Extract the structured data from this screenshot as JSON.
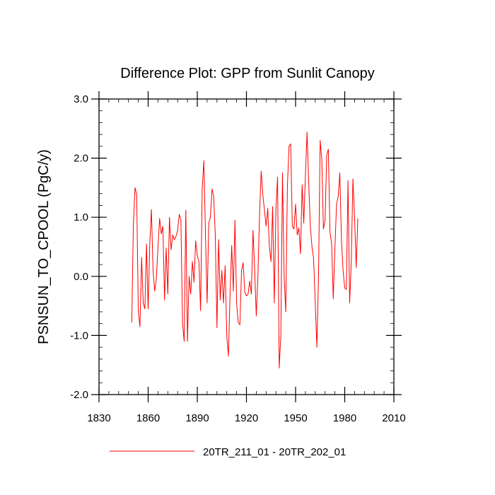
{
  "chart_data": {
    "type": "line",
    "title": "Difference Plot: GPP from Sunlit Canopy",
    "xlabel": "",
    "ylabel": "PSNSUN_TO_CPOOL  (PgC/y)",
    "xlim": [
      1830,
      2010
    ],
    "ylim": [
      -2.0,
      3.0
    ],
    "x_ticks": [
      1830,
      1860,
      1890,
      1920,
      1950,
      1980,
      2010
    ],
    "y_ticks": [
      -2.0,
      -1.0,
      0.0,
      1.0,
      2.0,
      3.0
    ],
    "x_tick_labels": [
      "1830",
      "1860",
      "1890",
      "1920",
      "1950",
      "1980",
      "2010"
    ],
    "y_tick_labels": [
      "-2.0",
      "-1.0",
      "0.0",
      "1.0",
      "2.0",
      "3.0"
    ],
    "legend_position": "bottom",
    "series": [
      {
        "name": "20TR_211_01 - 20TR_202_01",
        "color": "#ff0000",
        "x_start": 1850,
        "x_step": 1,
        "values": [
          -0.78,
          0.9,
          1.5,
          1.38,
          -0.6,
          -0.85,
          0.32,
          -0.45,
          -0.55,
          0.55,
          -0.55,
          0.55,
          1.13,
          0.1,
          -0.25,
          -0.05,
          0.5,
          0.98,
          0.72,
          0.85,
          -0.4,
          0.48,
          -0.3,
          1.0,
          0.45,
          0.7,
          0.62,
          0.68,
          0.78,
          1.05,
          0.95,
          -0.8,
          -1.1,
          1.12,
          -1.1,
          0.0,
          -0.3,
          0.25,
          -0.1,
          0.6,
          0.35,
          0.25,
          -0.58,
          1.48,
          1.96,
          0.7,
          -0.45,
          0.9,
          1.0,
          1.48,
          1.35,
          0.68,
          -0.87,
          0.62,
          -0.4,
          0.1,
          -0.45,
          0.18,
          -1.0,
          -1.35,
          -0.3,
          0.52,
          -0.25,
          0.95,
          -0.45,
          -0.78,
          -0.82,
          0.1,
          0.23,
          -0.27,
          -0.33,
          -0.3,
          -0.08,
          -0.3,
          0.78,
          0.12,
          -0.67,
          0.0,
          1.05,
          1.78,
          1.38,
          1.12,
          0.85,
          1.15,
          0.5,
          0.25,
          1.18,
          -0.45,
          1.15,
          1.68,
          -1.55,
          -1.0,
          1.75,
          0.0,
          -0.6,
          1.52,
          2.2,
          2.24,
          0.85,
          0.8,
          1.22,
          0.7,
          0.82,
          0.38,
          1.55,
          0.9,
          1.7,
          2.44,
          1.6,
          0.85,
          0.5,
          0.3,
          -0.45,
          -1.2,
          0.0,
          2.3,
          1.98,
          0.8,
          0.95,
          2.05,
          2.15,
          0.75,
          0.55,
          -0.38,
          0.48,
          1.22,
          1.35,
          1.75,
          0.62,
          0.1,
          -0.2,
          -0.22,
          1.62,
          -0.45,
          0.25,
          1.65,
          1.0,
          0.15,
          0.98
        ]
      }
    ]
  }
}
